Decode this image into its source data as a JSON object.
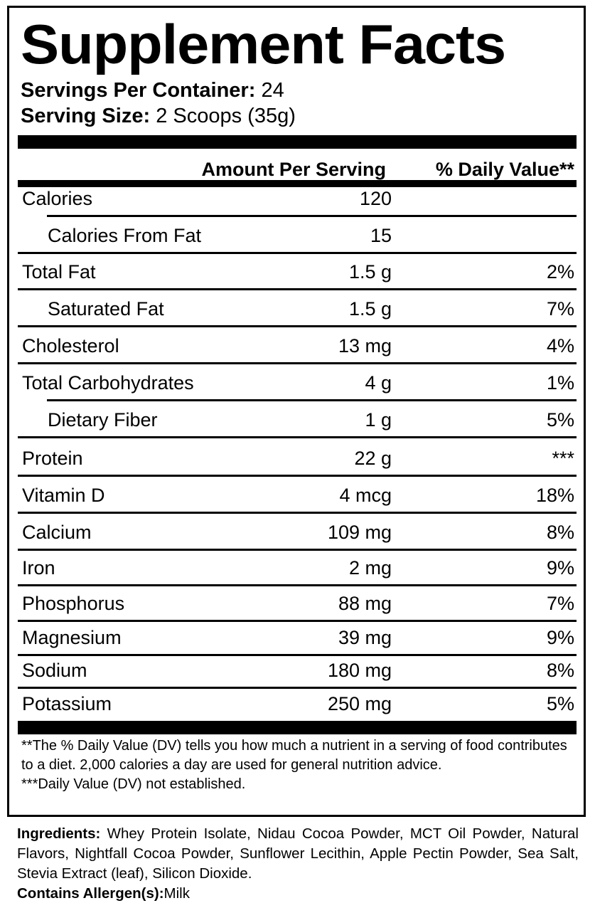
{
  "title": "Supplement Facts",
  "servings_per_container": {
    "label": "Servings Per Container:",
    "value": "24"
  },
  "serving_size": {
    "label": "Serving Size:",
    "value": "2 Scoops (35g)"
  },
  "columns": {
    "amount": "Amount Per Serving",
    "daily_value": "% Daily Value**"
  },
  "rows": [
    {
      "name": "Calories",
      "amount": "120",
      "dv": ""
    },
    {
      "name": "Calories From Fat",
      "amount": "15",
      "dv": ""
    },
    {
      "name": "Total Fat",
      "amount": "1.5 g",
      "dv": "2%"
    },
    {
      "name": "Saturated Fat",
      "amount": "1.5 g",
      "dv": "7%"
    },
    {
      "name": "Cholesterol",
      "amount": "13 mg",
      "dv": "4%"
    },
    {
      "name": "Total Carbohydrates",
      "amount": "4 g",
      "dv": "1%"
    },
    {
      "name": "Dietary Fiber",
      "amount": "1 g",
      "dv": "5%"
    },
    {
      "name": "Protein",
      "amount": "22 g",
      "dv": "***"
    },
    {
      "name": "Vitamin D",
      "amount": "4 mcg",
      "dv": "18%"
    },
    {
      "name": "Calcium",
      "amount": "109 mg",
      "dv": "8%"
    },
    {
      "name": "Iron",
      "amount": "2 mg",
      "dv": "9%"
    },
    {
      "name": "Phosphorus",
      "amount": "88 mg",
      "dv": "7%"
    },
    {
      "name": "Magnesium",
      "amount": "39 mg",
      "dv": "9%"
    },
    {
      "name": "Sodium",
      "amount": "180 mg",
      "dv": "8%"
    },
    {
      "name": "Potassium",
      "amount": "250 mg",
      "dv": "5%"
    }
  ],
  "footnotes": [
    "**The % Daily Value (DV) tells you how much a nutrient in a serving of food contributes to a diet. 2,000 calories a day are used for general nutrition advice.",
    "***Daily Value (DV) not established."
  ],
  "ingredients": {
    "label": "Ingredients:",
    "text": "Whey Protein Isolate, Nidau Cocoa Powder, MCT Oil Powder, Natural Flavors, Nightfall Cocoa Powder, Sunflower Lecithin, Apple Pectin Powder, Sea Salt, Stevia Extract (leaf), Silicon Dioxide."
  },
  "allergens": {
    "label": "Contains Allergen(s):",
    "text": "Milk"
  }
}
